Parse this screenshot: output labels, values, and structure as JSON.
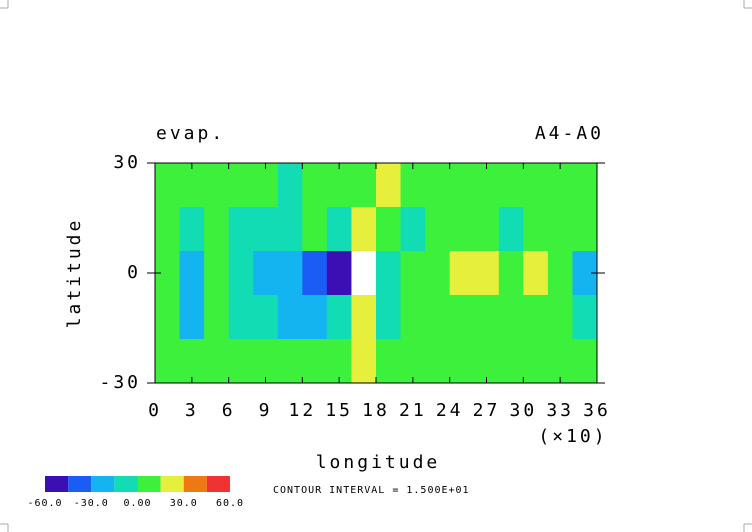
{
  "chart_data": {
    "type": "contour",
    "title": "evap.",
    "subtitle": "A4-A0",
    "x_label": "longitude",
    "x_multiplier": "(×10)",
    "y_label": "latitude",
    "annotation": "CONTOUR INTERVAL = 1.500E+01",
    "xlim": [
      0,
      36
    ],
    "ylim": [
      -30,
      30
    ],
    "xticks": [
      0,
      3,
      6,
      9,
      12,
      15,
      18,
      21,
      24,
      27,
      30,
      33,
      36
    ],
    "yticks": [
      -30,
      0,
      30
    ],
    "x": [
      1,
      3,
      5,
      7,
      9,
      11,
      13,
      15,
      17,
      19,
      21,
      23,
      25,
      27,
      29,
      31,
      33,
      35
    ],
    "y": [
      24,
      12,
      0,
      -12,
      -24
    ],
    "z": [
      [
        5,
        10,
        5,
        10,
        5,
        0,
        5,
        10,
        5,
        20,
        10,
        5,
        10,
        5,
        10,
        5,
        10,
        5
      ],
      [
        5,
        0,
        5,
        -5,
        0,
        -5,
        5,
        0,
        30,
        5,
        0,
        5,
        10,
        5,
        0,
        5,
        10,
        5
      ],
      [
        5,
        -15,
        10,
        -5,
        -25,
        -20,
        -35,
        -50,
        75,
        -10,
        5,
        10,
        20,
        30,
        15,
        20,
        10,
        -20
      ],
      [
        10,
        -20,
        5,
        0,
        -10,
        -25,
        -15,
        -5,
        30,
        -5,
        5,
        10,
        5,
        10,
        5,
        10,
        5,
        0
      ],
      [
        10,
        5,
        15,
        5,
        10,
        5,
        10,
        15,
        20,
        5,
        10,
        5,
        10,
        5,
        10,
        5,
        10,
        5
      ]
    ],
    "levels": [
      -60,
      -45,
      -30,
      -15,
      0,
      15,
      30,
      45,
      60
    ],
    "colors": [
      "#3b0fb4",
      "#1b5cf5",
      "#14b4f0",
      "#12dcb4",
      "#3cf03c",
      "#e6f03c",
      "#f07814",
      "#f03232"
    ],
    "colorbar_ticks": [
      {
        "value": -60,
        "label": "-60.0"
      },
      {
        "value": -30,
        "label": "-30.0"
      },
      {
        "value": 0,
        "label": "0.00"
      },
      {
        "value": 30,
        "label": "30.0"
      },
      {
        "value": 60,
        "label": "60.0"
      }
    ]
  }
}
